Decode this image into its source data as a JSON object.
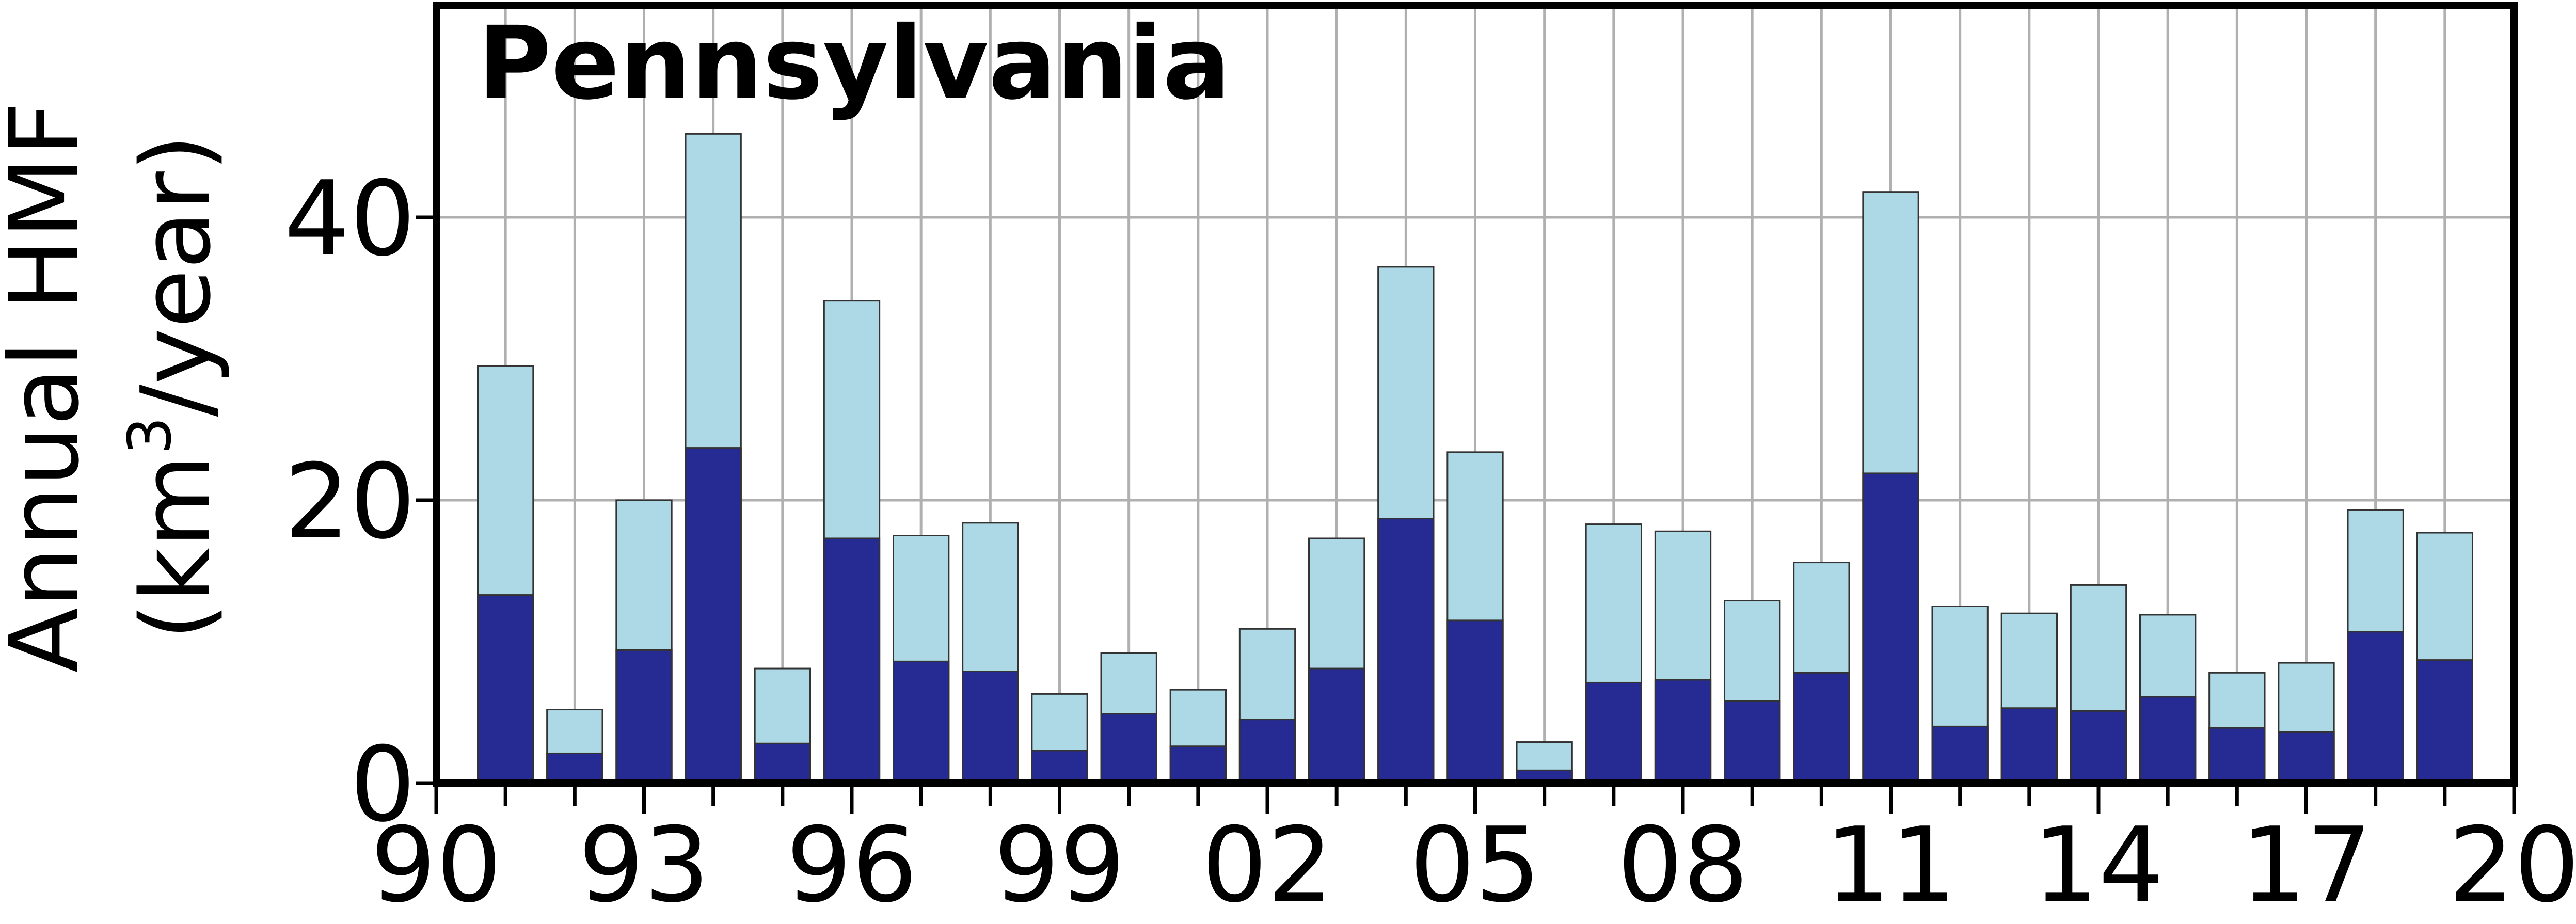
{
  "chart_data": {
    "type": "bar",
    "title": "Pennsylvania",
    "ylabel": {
      "line1": "Annual HMF",
      "line2_prefix": "(km",
      "line2_sup": "3",
      "line2_suffix": "/year)"
    },
    "xlim": [
      1990,
      2020
    ],
    "ylim": [
      0,
      55
    ],
    "grid": true,
    "x_ticks": [
      {
        "value": 1990,
        "label": "90"
      },
      {
        "value": 1993,
        "label": "93"
      },
      {
        "value": 1996,
        "label": "96"
      },
      {
        "value": 1999,
        "label": "99"
      },
      {
        "value": 2002,
        "label": "02"
      },
      {
        "value": 2005,
        "label": "05"
      },
      {
        "value": 2008,
        "label": "08"
      },
      {
        "value": 2011,
        "label": "11"
      },
      {
        "value": 2014,
        "label": "14"
      },
      {
        "value": 2017,
        "label": "17"
      },
      {
        "value": 2020,
        "label": "20"
      }
    ],
    "y_ticks": [
      {
        "value": 0,
        "label": "0"
      },
      {
        "value": 20,
        "label": "20"
      },
      {
        "value": 40,
        "label": "40"
      }
    ],
    "years": [
      1991,
      1992,
      1993,
      1994,
      1995,
      1996,
      1997,
      1998,
      1999,
      2000,
      2001,
      2002,
      2003,
      2004,
      2005,
      2006,
      2007,
      2008,
      2009,
      2010,
      2011,
      2012,
      2013,
      2014,
      2015,
      2016,
      2017,
      2018,
      2019
    ],
    "series": [
      {
        "color": "#262b93",
        "values": [
          13.3,
          2.1,
          9.4,
          23.7,
          2.8,
          17.3,
          8.6,
          7.9,
          2.3,
          4.9,
          2.6,
          4.5,
          8.1,
          18.7,
          11.5,
          0.9,
          7.1,
          7.3,
          5.8,
          7.8,
          21.9,
          4.0,
          5.3,
          5.1,
          6.1,
          3.9,
          3.6,
          10.7,
          8.7
        ]
      },
      {
        "color": "#add8e6",
        "values": [
          29.5,
          5.2,
          20.0,
          45.9,
          8.1,
          34.1,
          17.5,
          18.4,
          6.3,
          9.2,
          6.6,
          10.9,
          17.3,
          36.5,
          23.4,
          2.9,
          18.3,
          17.8,
          12.9,
          15.6,
          41.8,
          12.5,
          12.0,
          14.0,
          11.9,
          7.8,
          8.5,
          19.3,
          17.7
        ]
      }
    ]
  }
}
